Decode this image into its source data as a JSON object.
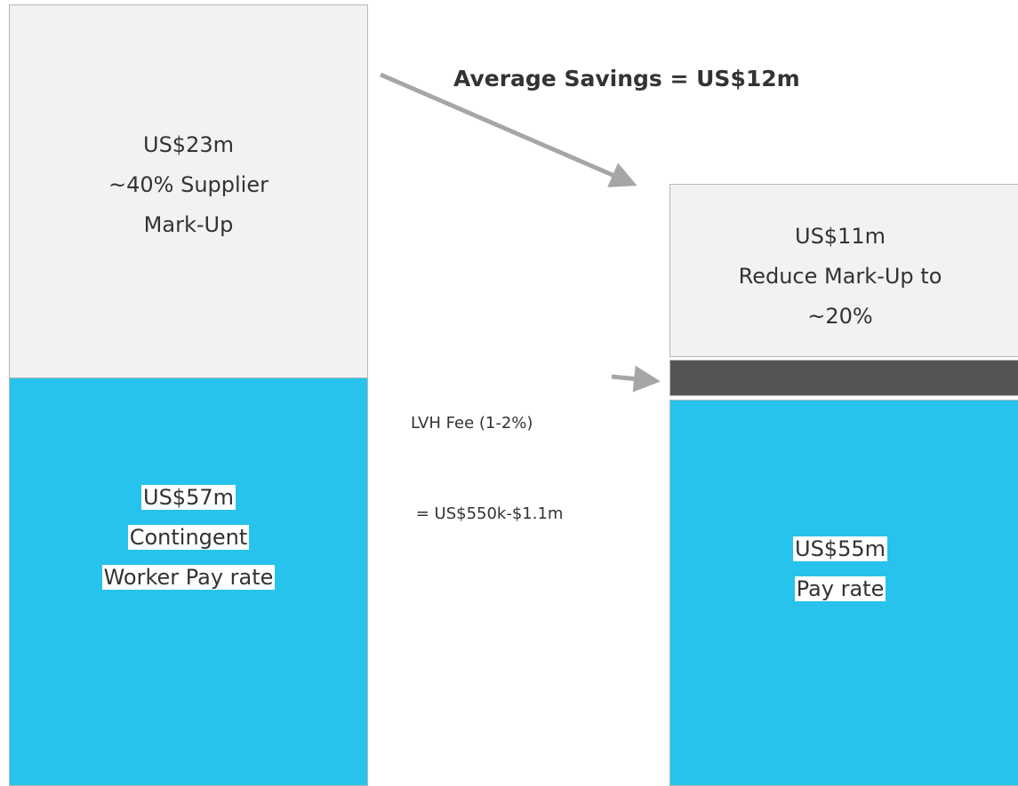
{
  "title": "Average Savings = US$12m",
  "left": {
    "markup": {
      "lines": [
        "US$23m",
        "~40% Supplier",
        "Mark-Up"
      ]
    },
    "pay": {
      "lines": [
        "US$57m",
        "Contingent",
        "Worker Pay rate"
      ]
    }
  },
  "right": {
    "markup": {
      "lines": [
        "US$11m",
        "Reduce Mark-Up to",
        "~20%"
      ]
    },
    "pay": {
      "lines": [
        "US$55m",
        "Pay rate"
      ]
    }
  },
  "fee": {
    "lines": [
      "LVH Fee (1-2%)",
      " = US$550k-$1.1m"
    ]
  }
}
